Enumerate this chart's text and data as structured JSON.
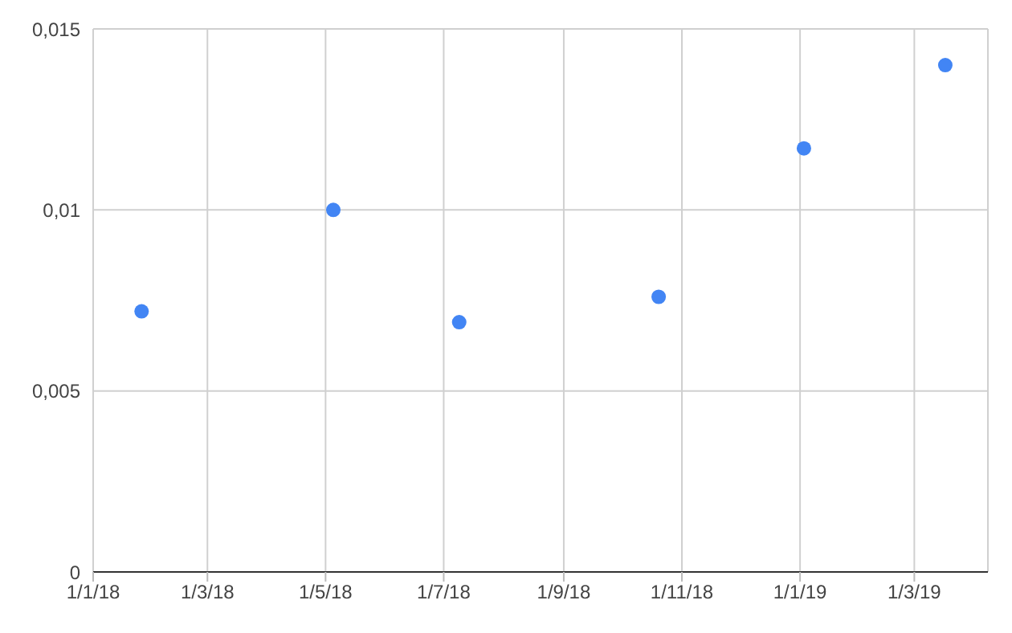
{
  "chart_data": {
    "type": "scatter",
    "x": [
      "2018-01-26",
      "2018-05-05",
      "2018-07-09",
      "2018-10-20",
      "2019-01-03",
      "2019-03-17"
    ],
    "series": [
      {
        "color": "#4285f4",
        "values": [
          0.0072,
          0.01,
          0.0069,
          0.0076,
          0.0117,
          0.014
        ]
      }
    ],
    "xlim": [
      "2018-01-01",
      "2019-04-08"
    ],
    "xticks": [
      {
        "value": "2018-01-01",
        "label": "1/1/18"
      },
      {
        "value": "2018-03-01",
        "label": "1/3/18"
      },
      {
        "value": "2018-05-01",
        "label": "1/5/18"
      },
      {
        "value": "2018-07-01",
        "label": "1/7/18"
      },
      {
        "value": "2018-09-01",
        "label": "1/9/18"
      },
      {
        "value": "2018-11-01",
        "label": "1/11/18"
      },
      {
        "value": "2019-01-01",
        "label": "1/1/19"
      },
      {
        "value": "2019-03-01",
        "label": "1/3/19"
      }
    ],
    "ylim": [
      0,
      0.015
    ],
    "yticks": [
      0,
      {
        "value": 0.005,
        "label": "0,005"
      },
      {
        "value": 0.01,
        "label": "0,01"
      },
      {
        "value": 0.015,
        "label": "0,015"
      }
    ],
    "grid": true,
    "marker": "circle"
  }
}
